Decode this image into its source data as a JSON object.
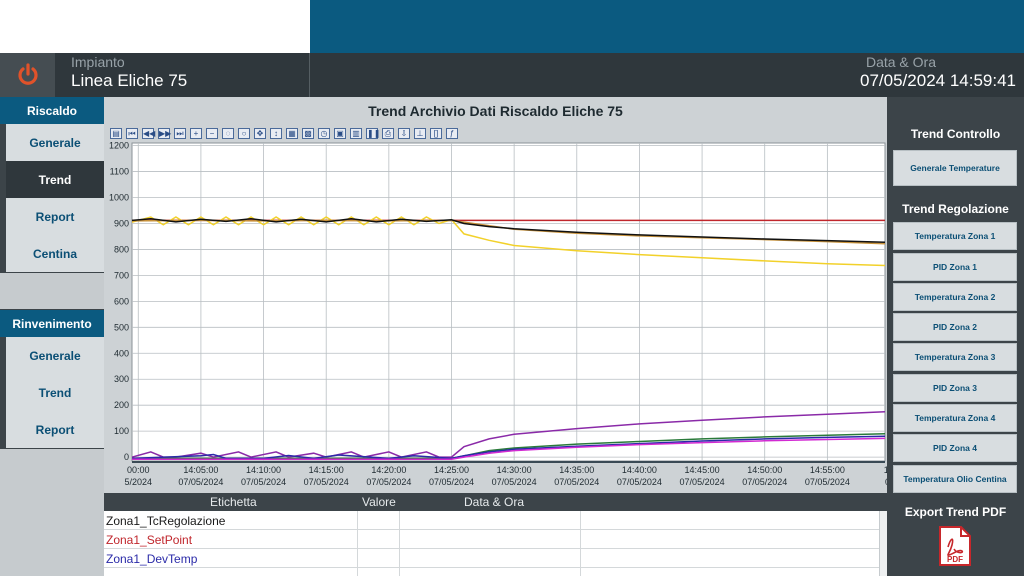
{
  "header": {
    "plant_label": "Impianto",
    "plant_value": "Linea Eliche 75",
    "datetime_label": "Data & Ora",
    "datetime_value": "07/05/2024 14:59:41"
  },
  "leftnav": {
    "group1_title": "Riscaldo",
    "group1_items": [
      "Generale",
      "Trend",
      "Report",
      "Centina"
    ],
    "group2_title": "Rinvenimento",
    "group2_items": [
      "Generale",
      "Trend",
      "Report"
    ]
  },
  "main": {
    "title": "Trend Archivio Dati Riscaldo Eliche 75"
  },
  "table": {
    "headers": [
      "Etichetta",
      "Valore",
      "Data & Ora"
    ],
    "rows": [
      {
        "label": "Zona1_TcRegolazione",
        "color": "#1a1a1a"
      },
      {
        "label": "Zona1_SetPoint",
        "color": "#c0262c"
      },
      {
        "label": "Zona1_DevTemp",
        "color": "#2a2aa8"
      }
    ]
  },
  "right": {
    "trend_controllo_title": "Trend Controllo",
    "generale_btn": "Generale Temperature",
    "trend_regolazione_title": "Trend Regolazione",
    "regolazione_buttons": [
      "Temperatura Zona 1",
      "PID Zona 1",
      "Temperatura Zona 2",
      "PID Zona 2",
      "Temperatura Zona 3",
      "PID Zona 3",
      "Temperatura Zona 4",
      "PID Zona 4",
      "Temperatura Olio Centina"
    ],
    "export_title": "Export Trend PDF",
    "pdf_label": "PDF"
  },
  "chart_data": {
    "type": "line",
    "yticks": [
      0,
      100,
      200,
      300,
      400,
      500,
      600,
      700,
      800,
      900,
      1000,
      1100,
      1200
    ],
    "ylim": [
      -15,
      1210
    ],
    "xticks": [
      {
        "t": 0,
        "time": "00:00",
        "date": "5/2024"
      },
      {
        "t": 5,
        "time": "14:05:00",
        "date": "07/05/2024"
      },
      {
        "t": 10,
        "time": "14:10:00",
        "date": "07/05/2024"
      },
      {
        "t": 15,
        "time": "14:15:00",
        "date": "07/05/2024"
      },
      {
        "t": 20,
        "time": "14:20:00",
        "date": "07/05/2024"
      },
      {
        "t": 25,
        "time": "14:25:00",
        "date": "07/05/2024"
      },
      {
        "t": 30,
        "time": "14:30:00",
        "date": "07/05/2024"
      },
      {
        "t": 35,
        "time": "14:35:00",
        "date": "07/05/2024"
      },
      {
        "t": 40,
        "time": "14:40:00",
        "date": "07/05/2024"
      },
      {
        "t": 45,
        "time": "14:45:00",
        "date": "07/05/2024"
      },
      {
        "t": 50,
        "time": "14:50:00",
        "date": "07/05/2024"
      },
      {
        "t": 55,
        "time": "14:55:00",
        "date": "07/05/2024"
      },
      {
        "t": 60,
        "time": "15:",
        "date": "07"
      }
    ],
    "xlim": [
      -0.5,
      59.6
    ],
    "grid": true,
    "series": [
      {
        "color": "#c0262c",
        "x": [
          -0.5,
          59.6
        ],
        "y": [
          912,
          912
        ]
      },
      {
        "color": "#f2d12a",
        "x": [
          -0.5,
          1,
          2,
          3,
          4,
          5,
          6,
          7,
          8,
          9,
          10,
          11,
          12,
          13,
          14,
          15,
          16,
          17,
          18,
          19,
          20,
          21,
          22,
          23,
          24,
          25,
          26,
          28,
          30,
          35,
          40,
          45,
          50,
          55,
          59.6
        ],
        "y": [
          905,
          925,
          895,
          925,
          895,
          925,
          895,
          925,
          895,
          925,
          895,
          925,
          895,
          925,
          895,
          925,
          895,
          925,
          895,
          925,
          895,
          925,
          895,
          925,
          900,
          915,
          860,
          835,
          815,
          795,
          780,
          768,
          756,
          745,
          738
        ]
      },
      {
        "color": "#c8923a",
        "x": [
          -0.5,
          5,
          10,
          15,
          20,
          25,
          30,
          35,
          40,
          45,
          50,
          55,
          59.6
        ],
        "y": [
          910,
          912,
          910,
          912,
          910,
          912,
          878,
          862,
          852,
          845,
          838,
          830,
          822
        ]
      },
      {
        "color": "#111111",
        "x": [
          -0.5,
          1,
          3,
          5,
          7,
          9,
          11,
          13,
          15,
          17,
          19,
          21,
          23,
          25,
          26,
          28,
          30,
          35,
          40,
          45,
          50,
          55,
          59.6
        ],
        "y": [
          912,
          918,
          906,
          916,
          908,
          918,
          906,
          916,
          906,
          918,
          906,
          916,
          908,
          914,
          900,
          888,
          880,
          866,
          856,
          848,
          840,
          834,
          828
        ]
      },
      {
        "color": "#8a2aa8",
        "x": [
          -0.5,
          1,
          2,
          3,
          5,
          6,
          8,
          9,
          11,
          12,
          14,
          15,
          17,
          18,
          20,
          21,
          23,
          24,
          25,
          26,
          28,
          30,
          35,
          40,
          45,
          50,
          55,
          59.6
        ],
        "y": [
          0,
          20,
          0,
          0,
          15,
          0,
          20,
          0,
          20,
          0,
          15,
          0,
          20,
          0,
          20,
          0,
          20,
          0,
          0,
          40,
          70,
          88,
          110,
          128,
          142,
          155,
          165,
          175
        ]
      },
      {
        "color": "#2a7a3a",
        "x": [
          -0.5,
          25,
          26,
          28,
          30,
          35,
          40,
          45,
          50,
          55,
          59.6
        ],
        "y": [
          -5,
          -5,
          5,
          25,
          35,
          50,
          60,
          70,
          78,
          84,
          90
        ]
      },
      {
        "color": "#2a2aa8",
        "x": [
          -0.5,
          5,
          6,
          7,
          10,
          12,
          14,
          16,
          20,
          22,
          25,
          26,
          28,
          30,
          35,
          40,
          45,
          50,
          55,
          59.6
        ],
        "y": [
          -5,
          5,
          10,
          -5,
          -5,
          6,
          -5,
          8,
          -5,
          5,
          -5,
          5,
          20,
          30,
          42,
          52,
          62,
          70,
          76,
          80
        ]
      },
      {
        "color": "#d22ad2",
        "x": [
          -0.5,
          25,
          26,
          28,
          30,
          35,
          40,
          45,
          50,
          55,
          59.6
        ],
        "y": [
          -8,
          -8,
          0,
          15,
          25,
          38,
          48,
          56,
          63,
          68,
          72
        ]
      }
    ]
  }
}
